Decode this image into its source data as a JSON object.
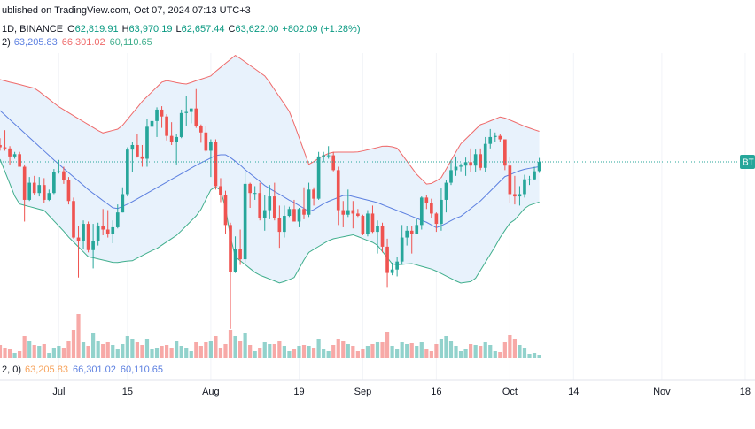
{
  "chart_data": {
    "type": "candlestick",
    "header": {
      "published": "ublished on TradingView.com, Oct 07, 2024 07:13 UTC+3",
      "interval": "1D, BINANCE",
      "ohlc_letters": [
        "O",
        "H",
        "L",
        "C"
      ],
      "ohlc_labels": [
        "62,819.91",
        "63,970.19",
        "62,657.44",
        "63,622.00"
      ],
      "change": "+802.09 (+1.28%)",
      "value_color": "#089981",
      "bb_prefix": "2)",
      "bb_labels": [
        "63,205.83",
        "66,301.02",
        "60,110.65"
      ],
      "vol_prefix": "2, 0)",
      "vol_labels": [
        "63,205.83",
        "66,301.02",
        "60,110.65"
      ],
      "vol_label_colors": [
        "#f7a35c",
        "#5b7fe0",
        "#5b7fe0"
      ]
    },
    "price_label": "BT",
    "up_color": "#26a69a",
    "down_color": "#ef5350",
    "band_fill": "#e8f2fc",
    "xlim": [
      "06-19",
      "11-20"
    ],
    "xticks": [
      {
        "value": "07-01",
        "label": "Jul"
      },
      {
        "value": "07-15",
        "label": "15"
      },
      {
        "value": "08-01",
        "label": "Aug"
      },
      {
        "value": "08-19",
        "label": "19"
      },
      {
        "value": "09-01",
        "label": "Sep"
      },
      {
        "value": "09-16",
        "label": "16"
      },
      {
        "value": "10-01",
        "label": "Oct"
      },
      {
        "value": "10-14",
        "label": "14"
      },
      {
        "value": "11-01",
        "label": "Nov"
      },
      {
        "value": "11-18",
        "label": "18"
      }
    ],
    "grid": true,
    "ylim": [
      46200,
      77800
    ],
    "volume_ylim": [
      0,
      180000
    ],
    "x": [
      "06-19",
      "06-20",
      "06-21",
      "06-22",
      "06-23",
      "06-24",
      "06-25",
      "06-26",
      "06-27",
      "06-28",
      "06-29",
      "06-30",
      "07-01",
      "07-02",
      "07-03",
      "07-04",
      "07-05",
      "07-06",
      "07-07",
      "07-08",
      "07-09",
      "07-10",
      "07-11",
      "07-12",
      "07-13",
      "07-14",
      "07-15",
      "07-16",
      "07-17",
      "07-18",
      "07-19",
      "07-20",
      "07-21",
      "07-22",
      "07-23",
      "07-24",
      "07-25",
      "07-26",
      "07-27",
      "07-28",
      "07-29",
      "07-30",
      "07-31",
      "08-01",
      "08-02",
      "08-03",
      "08-04",
      "08-05",
      "08-06",
      "08-07",
      "08-08",
      "08-09",
      "08-10",
      "08-11",
      "08-12",
      "08-13",
      "08-14",
      "08-15",
      "08-16",
      "08-17",
      "08-18",
      "08-19",
      "08-20",
      "08-21",
      "08-22",
      "08-23",
      "08-24",
      "08-25",
      "08-26",
      "08-27",
      "08-28",
      "08-29",
      "08-30",
      "08-31",
      "09-01",
      "09-02",
      "09-03",
      "09-04",
      "09-05",
      "09-06",
      "09-07",
      "09-08",
      "09-09",
      "09-10",
      "09-11",
      "09-12",
      "09-13",
      "09-14",
      "09-15",
      "09-16",
      "09-17",
      "09-18",
      "09-19",
      "09-20",
      "09-21",
      "09-22",
      "09-23",
      "09-24",
      "09-25",
      "09-26",
      "09-27",
      "09-28",
      "09-29",
      "09-30",
      "10-01",
      "10-02",
      "10-03",
      "10-04",
      "10-05",
      "10-06",
      "10-07"
    ],
    "ohlc": [
      [
        65100,
        65700,
        64600,
        64900
      ],
      [
        64900,
        66400,
        64600,
        64800
      ],
      [
        64800,
        65000,
        63400,
        64100
      ],
      [
        64100,
        64500,
        63900,
        64300
      ],
      [
        64300,
        64500,
        63200,
        63200
      ],
      [
        63200,
        63400,
        58400,
        60300
      ],
      [
        60300,
        62300,
        60200,
        61800
      ],
      [
        61800,
        62400,
        60700,
        60900
      ],
      [
        60900,
        62300,
        60600,
        61600
      ],
      [
        61600,
        62200,
        60000,
        60300
      ],
      [
        60300,
        61200,
        60200,
        60900
      ],
      [
        60900,
        63000,
        60800,
        62700
      ],
      [
        62700,
        63800,
        62600,
        62800
      ],
      [
        62800,
        63200,
        61700,
        62000
      ],
      [
        62000,
        62300,
        59900,
        60200
      ],
      [
        60200,
        60500,
        56900,
        57000
      ],
      [
        57000,
        58000,
        53500,
        56700
      ],
      [
        56700,
        58500,
        56000,
        58200
      ],
      [
        58200,
        58400,
        55700,
        55900
      ],
      [
        55900,
        58200,
        54300,
        56700
      ],
      [
        56700,
        58300,
        56300,
        58000
      ],
      [
        58000,
        59500,
        57200,
        57700
      ],
      [
        57700,
        59400,
        57000,
        57300
      ],
      [
        57300,
        58500,
        56500,
        57900
      ],
      [
        57900,
        59900,
        57800,
        59200
      ],
      [
        59200,
        61400,
        59200,
        60800
      ],
      [
        60800,
        64900,
        60600,
        64700
      ],
      [
        64700,
        65400,
        62700,
        65100
      ],
      [
        65100,
        66100,
        64000,
        64100
      ],
      [
        64100,
        65100,
        63200,
        63900
      ],
      [
        63900,
        67400,
        63200,
        66700
      ],
      [
        66700,
        67600,
        66400,
        67200
      ],
      [
        67200,
        68400,
        65800,
        68200
      ],
      [
        68200,
        68500,
        66600,
        67600
      ],
      [
        67600,
        67800,
        65500,
        65900
      ],
      [
        65900,
        67100,
        65100,
        65400
      ],
      [
        65400,
        66100,
        63400,
        65800
      ],
      [
        65800,
        68200,
        65700,
        67900
      ],
      [
        67900,
        69400,
        66800,
        68000
      ],
      [
        68000,
        68300,
        67000,
        68300
      ],
      [
        68300,
        70000,
        66600,
        66800
      ],
      [
        66800,
        66900,
        65300,
        66200
      ],
      [
        66200,
        66800,
        64500,
        64600
      ],
      [
        64600,
        65600,
        62300,
        65400
      ],
      [
        65400,
        65600,
        61200,
        61500
      ],
      [
        61500,
        62200,
        60100,
        60700
      ],
      [
        60700,
        61100,
        57300,
        58100
      ],
      [
        58100,
        58300,
        49000,
        54000
      ],
      [
        54000,
        57100,
        53900,
        56000
      ],
      [
        56000,
        57700,
        54600,
        55100
      ],
      [
        55100,
        62700,
        54800,
        61700
      ],
      [
        61700,
        61800,
        59600,
        60900
      ],
      [
        60900,
        61500,
        60300,
        60900
      ],
      [
        60900,
        61800,
        58500,
        58700
      ],
      [
        58700,
        60700,
        57600,
        59400
      ],
      [
        59400,
        61600,
        58600,
        60600
      ],
      [
        60600,
        61800,
        58500,
        58700
      ],
      [
        58700,
        59800,
        56100,
        57500
      ],
      [
        57500,
        59800,
        57000,
        58900
      ],
      [
        58900,
        59700,
        58800,
        59500
      ],
      [
        59500,
        60300,
        58400,
        58400
      ],
      [
        58400,
        59600,
        57900,
        59500
      ],
      [
        59500,
        61400,
        58600,
        59000
      ],
      [
        59000,
        61800,
        58800,
        61200
      ],
      [
        61200,
        61400,
        59800,
        60400
      ],
      [
        60400,
        64500,
        60300,
        64100
      ],
      [
        64100,
        64500,
        63600,
        64200
      ],
      [
        64200,
        65000,
        63900,
        64200
      ],
      [
        64200,
        64500,
        62800,
        62900
      ],
      [
        62900,
        63200,
        58100,
        59400
      ],
      [
        59400,
        60200,
        57900,
        59000
      ],
      [
        59000,
        61200,
        58800,
        59400
      ],
      [
        59400,
        60200,
        57800,
        59100
      ],
      [
        59100,
        59500,
        58800,
        58900
      ],
      [
        58900,
        59000,
        57200,
        57300
      ],
      [
        57300,
        59400,
        57100,
        59100
      ],
      [
        59100,
        59800,
        57400,
        57500
      ],
      [
        57500,
        58500,
        55600,
        58000
      ],
      [
        58000,
        58300,
        55700,
        56200
      ],
      [
        56200,
        56900,
        52600,
        53900
      ],
      [
        53900,
        54800,
        53700,
        54200
      ],
      [
        54200,
        55300,
        53600,
        54900
      ],
      [
        54900,
        58100,
        54600,
        57000
      ],
      [
        57000,
        58000,
        56300,
        57600
      ],
      [
        57600,
        58000,
        55600,
        57300
      ],
      [
        57300,
        58600,
        57300,
        58100
      ],
      [
        58100,
        60600,
        57700,
        60500
      ],
      [
        60500,
        60700,
        59500,
        60000
      ],
      [
        60000,
        60400,
        58700,
        59100
      ],
      [
        59100,
        59200,
        57500,
        58200
      ],
      [
        58200,
        61300,
        57600,
        60300
      ],
      [
        60300,
        62000,
        59200,
        61800
      ],
      [
        61800,
        63800,
        61600,
        62900
      ],
      [
        62900,
        64100,
        62400,
        63200
      ],
      [
        63200,
        63500,
        62800,
        63300
      ],
      [
        63300,
        64000,
        62400,
        63600
      ],
      [
        63600,
        64800,
        62700,
        63300
      ],
      [
        63300,
        64700,
        62700,
        64300
      ],
      [
        64300,
        64800,
        62900,
        63100
      ],
      [
        63100,
        65800,
        62700,
        65200
      ],
      [
        65200,
        66500,
        64800,
        65800
      ],
      [
        65800,
        66200,
        65400,
        65900
      ],
      [
        65900,
        66100,
        65400,
        65600
      ],
      [
        65600,
        65600,
        62900,
        63300
      ],
      [
        63300,
        64100,
        60000,
        60800
      ],
      [
        60800,
        62400,
        59900,
        60600
      ],
      [
        60600,
        61500,
        59800,
        60800
      ],
      [
        60800,
        62500,
        60500,
        62100
      ],
      [
        62100,
        62400,
        61600,
        62100
      ],
      [
        62100,
        63200,
        62000,
        62800
      ],
      [
        62819.91,
        63970.19,
        62657.44,
        63622
      ]
    ],
    "volume": [
      22500,
      18000,
      15000,
      9000,
      12000,
      37500,
      30000,
      22500,
      21000,
      24000,
      9000,
      18000,
      21000,
      18000,
      30000,
      48000,
      75000,
      27000,
      21000,
      42000,
      30000,
      24000,
      27000,
      22500,
      15000,
      24000,
      37500,
      33000,
      27000,
      22500,
      33000,
      15000,
      18000,
      21000,
      22500,
      18000,
      30000,
      21000,
      18000,
      12000,
      27000,
      21000,
      27000,
      30000,
      37500,
      18000,
      24000,
      48000,
      37500,
      30000,
      42000,
      22500,
      12000,
      18000,
      27000,
      24000,
      24000,
      30000,
      21000,
      12000,
      15000,
      21000,
      22500,
      21000,
      18000,
      33000,
      15000,
      12000,
      22500,
      33000,
      30000,
      24000,
      21000,
      12000,
      15000,
      21000,
      24000,
      27000,
      27000,
      45000,
      21000,
      15000,
      27000,
      24000,
      25500,
      21000,
      27000,
      15000,
      12000,
      24000,
      33000,
      37500,
      30000,
      21000,
      12000,
      15000,
      24000,
      22500,
      21000,
      27000,
      22500,
      12000,
      10500,
      27000,
      39000,
      33000,
      22500,
      18000,
      7500,
      9000,
      6000
    ],
    "bands": [
      {
        "color": "#5b7fe0",
        "values": [
          68120,
          67730,
          67330,
          66940,
          66550,
          66150,
          65760,
          65370,
          64970,
          64580,
          64190,
          63790,
          63420,
          63050,
          62680,
          62310,
          61940,
          61570,
          61200,
          60870,
          60560,
          60240,
          59930,
          59610,
          59540,
          59730,
          59920,
          60150,
          60390,
          60630,
          60880,
          61120,
          61370,
          61610,
          61850,
          62100,
          62340,
          62590,
          62830,
          63080,
          63320,
          63540,
          63750,
          63970,
          64180,
          64250,
          64250,
          64000,
          63680,
          63350,
          62950,
          62600,
          62260,
          61910,
          61560,
          61290,
          61040,
          60790,
          60530,
          60270,
          60070,
          59810,
          59550,
          59280,
          59440,
          59700,
          59960,
          60170,
          60340,
          60510,
          60680,
          60700,
          60600,
          60490,
          60380,
          60280,
          60170,
          60060,
          59880,
          59710,
          59540,
          59370,
          59200,
          59030,
          58860,
          58680,
          58510,
          58340,
          58100,
          57870,
          58030,
          58250,
          58480,
          58700,
          58860,
          59190,
          59530,
          59870,
          60210,
          60630,
          61060,
          61490,
          61920,
          62340,
          62500,
          62680,
          62850,
          62980,
          63060,
          63130,
          63205.83
        ]
      },
      {
        "color": "#ef6a6a",
        "values": [
          70830,
          70720,
          70610,
          70510,
          70400,
          70290,
          70180,
          70080,
          69790,
          69450,
          69120,
          68780,
          68450,
          68190,
          67930,
          67670,
          67410,
          67150,
          66890,
          66630,
          66370,
          66160,
          66270,
          66380,
          66490,
          66830,
          67350,
          67870,
          68380,
          68920,
          69340,
          69760,
          70180,
          70600,
          70740,
          70660,
          70570,
          70490,
          70440,
          70580,
          70730,
          70870,
          71010,
          71150,
          71550,
          71900,
          72250,
          72600,
          72950,
          72680,
          72380,
          72070,
          71770,
          71460,
          71150,
          70590,
          69950,
          69320,
          68690,
          68050,
          66950,
          65770,
          64590,
          63410,
          63650,
          63930,
          64160,
          64360,
          64470,
          64480,
          64480,
          64480,
          64480,
          64500,
          64580,
          64680,
          64780,
          64880,
          64990,
          65000,
          64940,
          64820,
          64270,
          63690,
          63110,
          62530,
          62110,
          61680,
          61740,
          61970,
          62250,
          62990,
          63740,
          64490,
          65210,
          65630,
          66050,
          66470,
          66880,
          67030,
          67210,
          67380,
          67560,
          67460,
          67290,
          67110,
          66920,
          66740,
          66590,
          66440,
          66301.02
        ]
      },
      {
        "color": "#3fae8c",
        "values": [
          63860,
          62780,
          61710,
          60630,
          59940,
          59820,
          59710,
          59600,
          59480,
          59370,
          58920,
          58460,
          58010,
          57550,
          57040,
          56610,
          56180,
          55750,
          55320,
          55230,
          55130,
          55030,
          54930,
          54830,
          54820,
          54880,
          54940,
          54970,
          55200,
          55420,
          55640,
          55860,
          56040,
          56330,
          56620,
          56900,
          57190,
          57600,
          58030,
          58460,
          58890,
          59470,
          60330,
          61180,
          61430,
          61150,
          59570,
          57050,
          55310,
          54970,
          54630,
          54290,
          53950,
          53710,
          53540,
          53370,
          53200,
          53030,
          53150,
          53320,
          53500,
          54270,
          55040,
          55700,
          55960,
          56220,
          56480,
          56730,
          56890,
          56980,
          57060,
          57150,
          57240,
          57080,
          56910,
          56740,
          56580,
          56320,
          55780,
          55240,
          54700,
          54610,
          54650,
          54690,
          54720,
          54600,
          54480,
          54360,
          54240,
          54060,
          53850,
          53630,
          53420,
          53200,
          53020,
          53080,
          53140,
          53440,
          54130,
          54830,
          55520,
          56220,
          56990,
          57630,
          58260,
          58550,
          59040,
          59540,
          59830,
          59970,
          60110.65
        ]
      }
    ]
  }
}
